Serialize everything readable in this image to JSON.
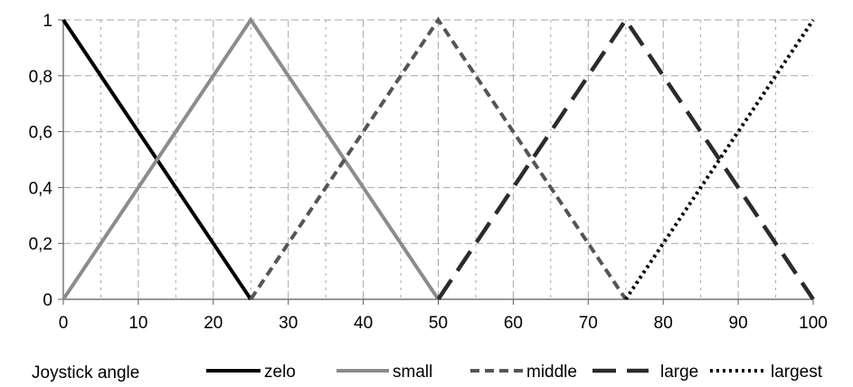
{
  "chart_data": {
    "type": "line",
    "xlabel": "Joystick angle",
    "ylabel": "",
    "xlim": [
      0,
      100
    ],
    "ylim": [
      0,
      1
    ],
    "x_ticks": [
      "0",
      "10",
      "20",
      "30",
      "40",
      "50",
      "60",
      "70",
      "80",
      "90",
      "100"
    ],
    "y_ticks": [
      "0",
      "0,2",
      "0,4",
      "0,6",
      "0,8",
      "1"
    ],
    "grid": true,
    "legend_position": "bottom",
    "series": [
      {
        "name": "zelo",
        "x": [
          0,
          25
        ],
        "y": [
          1,
          0
        ],
        "color": "#000000",
        "style": "solid"
      },
      {
        "name": "small",
        "x": [
          0,
          25,
          50
        ],
        "y": [
          0,
          1,
          0
        ],
        "color": "#8c8c8c",
        "style": "solid"
      },
      {
        "name": "middle",
        "x": [
          25,
          50,
          75
        ],
        "y": [
          0,
          1,
          0
        ],
        "color": "#555555",
        "style": "dashed"
      },
      {
        "name": "large",
        "x": [
          50,
          75,
          100
        ],
        "y": [
          0,
          1,
          0
        ],
        "color": "#2b2b2b",
        "style": "longdash"
      },
      {
        "name": "largest",
        "x": [
          75,
          100
        ],
        "y": [
          0,
          1
        ],
        "color": "#000000",
        "style": "dotted"
      }
    ]
  }
}
